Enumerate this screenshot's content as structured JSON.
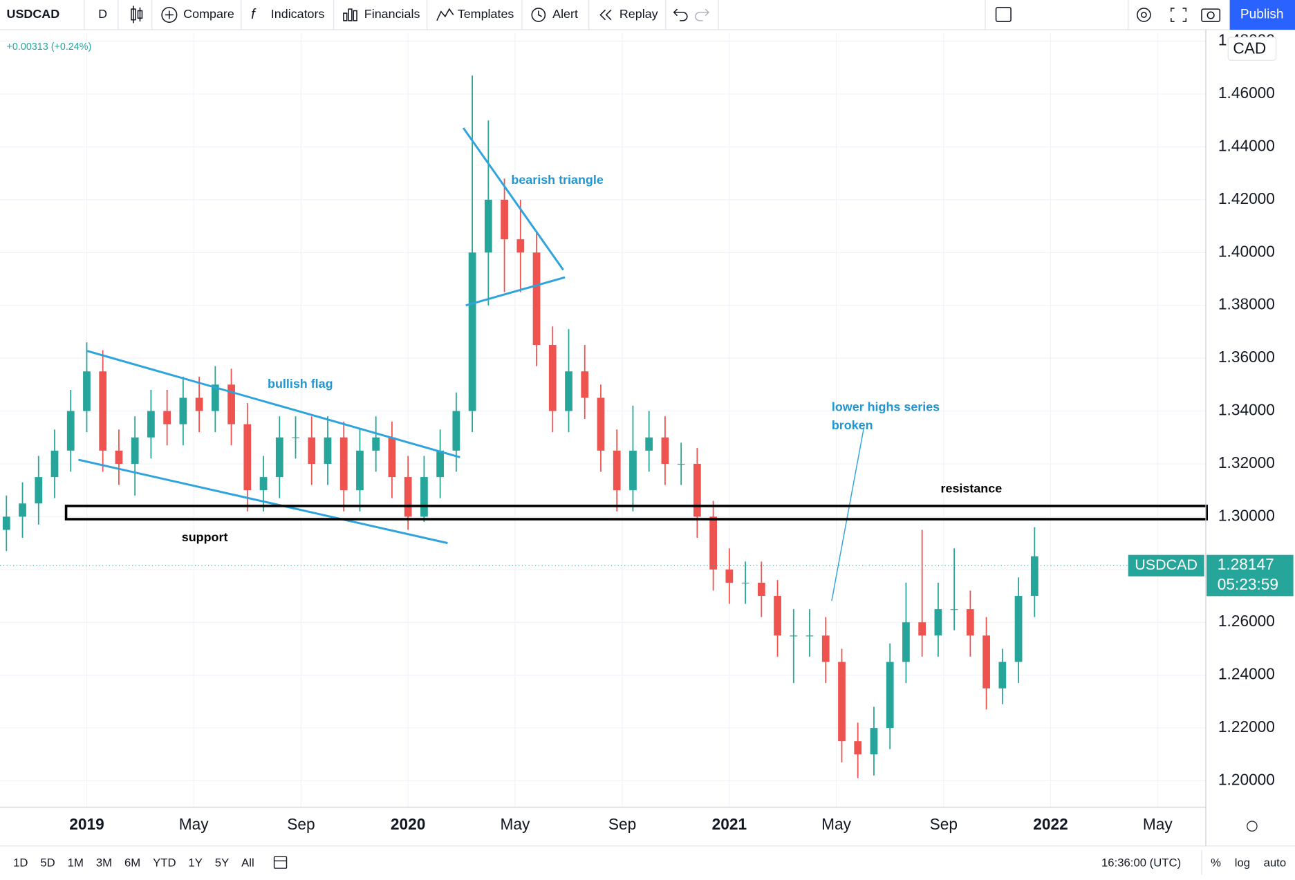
{
  "toolbar": {
    "symbol": "USDCAD",
    "interval": "D",
    "items": [
      "Compare",
      "Indicators",
      "Financials",
      "Templates",
      "Alert",
      "Replay"
    ],
    "publish": "Publish"
  },
  "chart_data": {
    "type": "candlestick",
    "change": "+0.00313 (+0.24%)",
    "currency": "CAD",
    "last_price": 1.28147,
    "countdown": "05:23:59",
    "up_color": "#26a69a",
    "down_color": "#ef5350",
    "grid": true,
    "xlim": [
      2018.73,
      2022.483
    ],
    "xticks": [
      {
        "value": 2019,
        "label": "2019"
      },
      {
        "value": 2019.333,
        "label": "May"
      },
      {
        "value": 2019.667,
        "label": "Sep"
      },
      {
        "value": 2020,
        "label": "2020"
      },
      {
        "value": 2020.333,
        "label": "May"
      },
      {
        "value": 2020.667,
        "label": "Sep"
      },
      {
        "value": 2021,
        "label": "2021"
      },
      {
        "value": 2021.333,
        "label": "May"
      },
      {
        "value": 2021.667,
        "label": "Sep"
      },
      {
        "value": 2022,
        "label": "2022"
      },
      {
        "value": 2022.333,
        "label": "May"
      }
    ],
    "ylim": [
      1.19,
      1.4831
    ],
    "yticks": [
      {
        "value": 1.2,
        "label": "1.20000"
      },
      {
        "value": 1.22,
        "label": "1.22000"
      },
      {
        "value": 1.24,
        "label": "1.24000"
      },
      {
        "value": 1.26,
        "label": "1.26000"
      },
      {
        "value": 1.28,
        "label": "1.28000"
      },
      {
        "value": 1.3,
        "label": "1.30000"
      },
      {
        "value": 1.32,
        "label": "1.32000"
      },
      {
        "value": 1.34,
        "label": "1.34000"
      },
      {
        "value": 1.36,
        "label": "1.36000"
      },
      {
        "value": 1.38,
        "label": "1.38000"
      },
      {
        "value": 1.4,
        "label": "1.40000"
      },
      {
        "value": 1.42,
        "label": "1.42000"
      },
      {
        "value": 1.44,
        "label": "1.44000"
      },
      {
        "value": 1.46,
        "label": "1.46000"
      },
      {
        "value": 1.48,
        "label": "1.48000"
      }
    ],
    "x": [
      2018.75,
      2018.8,
      2018.85,
      2018.9,
      2018.95,
      2019.0,
      2019.05,
      2019.1,
      2019.15,
      2019.2,
      2019.25,
      2019.3,
      2019.35,
      2019.4,
      2019.45,
      2019.5,
      2019.55,
      2019.6,
      2019.65,
      2019.7,
      2019.75,
      2019.8,
      2019.85,
      2019.9,
      2019.95,
      2020.0,
      2020.05,
      2020.1,
      2020.15,
      2020.2,
      2020.25,
      2020.3,
      2020.35,
      2020.4,
      2020.45,
      2020.5,
      2020.55,
      2020.6,
      2020.65,
      2020.7,
      2020.75,
      2020.8,
      2020.85,
      2020.9,
      2020.95,
      2021.0,
      2021.05,
      2021.1,
      2021.15,
      2021.2,
      2021.25,
      2021.3,
      2021.35,
      2021.4,
      2021.45,
      2021.5,
      2021.55,
      2021.6,
      2021.65,
      2021.7,
      2021.75,
      2021.8,
      2021.85,
      2021.9,
      2021.95
    ],
    "open": [
      1.295,
      1.3,
      1.305,
      1.315,
      1.325,
      1.34,
      1.355,
      1.325,
      1.32,
      1.33,
      1.34,
      1.335,
      1.345,
      1.34,
      1.35,
      1.335,
      1.31,
      1.315,
      1.33,
      1.33,
      1.32,
      1.33,
      1.31,
      1.325,
      1.33,
      1.315,
      1.3,
      1.315,
      1.325,
      1.34,
      1.4,
      1.42,
      1.405,
      1.4,
      1.365,
      1.34,
      1.355,
      1.345,
      1.325,
      1.31,
      1.325,
      1.33,
      1.32,
      1.32,
      1.3,
      1.28,
      1.275,
      1.275,
      1.27,
      1.255,
      1.255,
      1.255,
      1.245,
      1.215,
      1.21,
      1.22,
      1.245,
      1.26,
      1.255,
      1.265,
      1.265,
      1.255,
      1.235,
      1.245,
      1.27
    ],
    "high": [
      1.308,
      1.313,
      1.323,
      1.333,
      1.348,
      1.366,
      1.363,
      1.333,
      1.338,
      1.348,
      1.348,
      1.353,
      1.353,
      1.357,
      1.356,
      1.343,
      1.323,
      1.338,
      1.338,
      1.338,
      1.338,
      1.336,
      1.333,
      1.338,
      1.336,
      1.323,
      1.323,
      1.333,
      1.347,
      1.467,
      1.45,
      1.428,
      1.42,
      1.408,
      1.372,
      1.371,
      1.365,
      1.35,
      1.333,
      1.342,
      1.34,
      1.338,
      1.328,
      1.326,
      1.306,
      1.288,
      1.283,
      1.283,
      1.276,
      1.265,
      1.265,
      1.262,
      1.25,
      1.222,
      1.228,
      1.252,
      1.275,
      1.295,
      1.275,
      1.288,
      1.272,
      1.262,
      1.25,
      1.277,
      1.296
    ],
    "low": [
      1.287,
      1.292,
      1.297,
      1.307,
      1.317,
      1.332,
      1.317,
      1.312,
      1.308,
      1.322,
      1.327,
      1.327,
      1.332,
      1.332,
      1.327,
      1.302,
      1.302,
      1.307,
      1.322,
      1.312,
      1.312,
      1.302,
      1.302,
      1.317,
      1.307,
      1.295,
      1.298,
      1.307,
      1.317,
      1.332,
      1.38,
      1.385,
      1.385,
      1.357,
      1.332,
      1.332,
      1.337,
      1.317,
      1.302,
      1.302,
      1.317,
      1.312,
      1.312,
      1.292,
      1.272,
      1.267,
      1.267,
      1.262,
      1.247,
      1.237,
      1.247,
      1.237,
      1.207,
      1.201,
      1.202,
      1.212,
      1.237,
      1.247,
      1.247,
      1.257,
      1.247,
      1.227,
      1.229,
      1.237,
      1.262
    ],
    "close": [
      1.3,
      1.305,
      1.315,
      1.325,
      1.34,
      1.355,
      1.325,
      1.32,
      1.33,
      1.34,
      1.335,
      1.345,
      1.34,
      1.35,
      1.335,
      1.31,
      1.315,
      1.33,
      1.33,
      1.32,
      1.33,
      1.31,
      1.325,
      1.33,
      1.315,
      1.3,
      1.315,
      1.325,
      1.34,
      1.4,
      1.42,
      1.405,
      1.4,
      1.365,
      1.34,
      1.355,
      1.345,
      1.325,
      1.31,
      1.325,
      1.33,
      1.32,
      1.32,
      1.3,
      1.28,
      1.275,
      1.275,
      1.27,
      1.255,
      1.255,
      1.255,
      1.245,
      1.215,
      1.21,
      1.22,
      1.245,
      1.26,
      1.255,
      1.265,
      1.265,
      1.255,
      1.235,
      1.245,
      1.27,
      1.285
    ],
    "annotations": [
      "bullish flag",
      "bearish triangle",
      "lower highs series",
      "broken",
      "resistance",
      "support"
    ]
  },
  "bottom_bar": {
    "ranges": [
      "1D",
      "5D",
      "1M",
      "3M",
      "6M",
      "YTD",
      "1Y",
      "5Y",
      "All"
    ],
    "time": "16:36:00 (UTC)",
    "options": [
      "%",
      "log",
      "auto"
    ]
  }
}
